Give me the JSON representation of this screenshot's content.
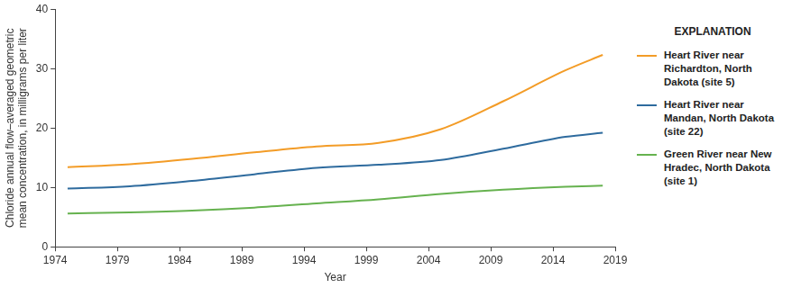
{
  "chart_data": {
    "type": "line",
    "x_label": "Year",
    "y_label": "Chloride annual flow–averaged geometric mean concentration, in milligrams per liter",
    "legend_title": "EXPLANATION",
    "legend": "right",
    "grid": false,
    "x": [
      1975,
      1980,
      1985,
      1990,
      1995,
      2000,
      2005,
      2010,
      2015,
      2018
    ],
    "xlim": [
      1974,
      2019
    ],
    "xticks": [
      1974,
      1979,
      1984,
      1989,
      1994,
      1999,
      2004,
      2009,
      2014,
      2019
    ],
    "ylim": [
      0,
      40
    ],
    "yticks": [
      0,
      10,
      20,
      30,
      40
    ],
    "series": [
      {
        "name": "Heart River near Richardton, North Dakota (site 5)",
        "color": "#f39c27",
        "values": [
          13.4,
          13.9,
          14.8,
          15.9,
          16.9,
          17.5,
          19.8,
          24.5,
          29.7,
          32.3
        ]
      },
      {
        "name": "Heart River near Mandan, North Dakota (site 22)",
        "color": "#2e6b9e",
        "values": [
          9.8,
          10.2,
          11.1,
          12.2,
          13.3,
          13.8,
          14.6,
          16.5,
          18.5,
          19.2
        ]
      },
      {
        "name": "Green River near New Hradec, North Dakota (site 1)",
        "color": "#66b24f",
        "values": [
          5.6,
          5.8,
          6.1,
          6.6,
          7.3,
          8.0,
          8.9,
          9.6,
          10.1,
          10.3
        ]
      }
    ]
  }
}
